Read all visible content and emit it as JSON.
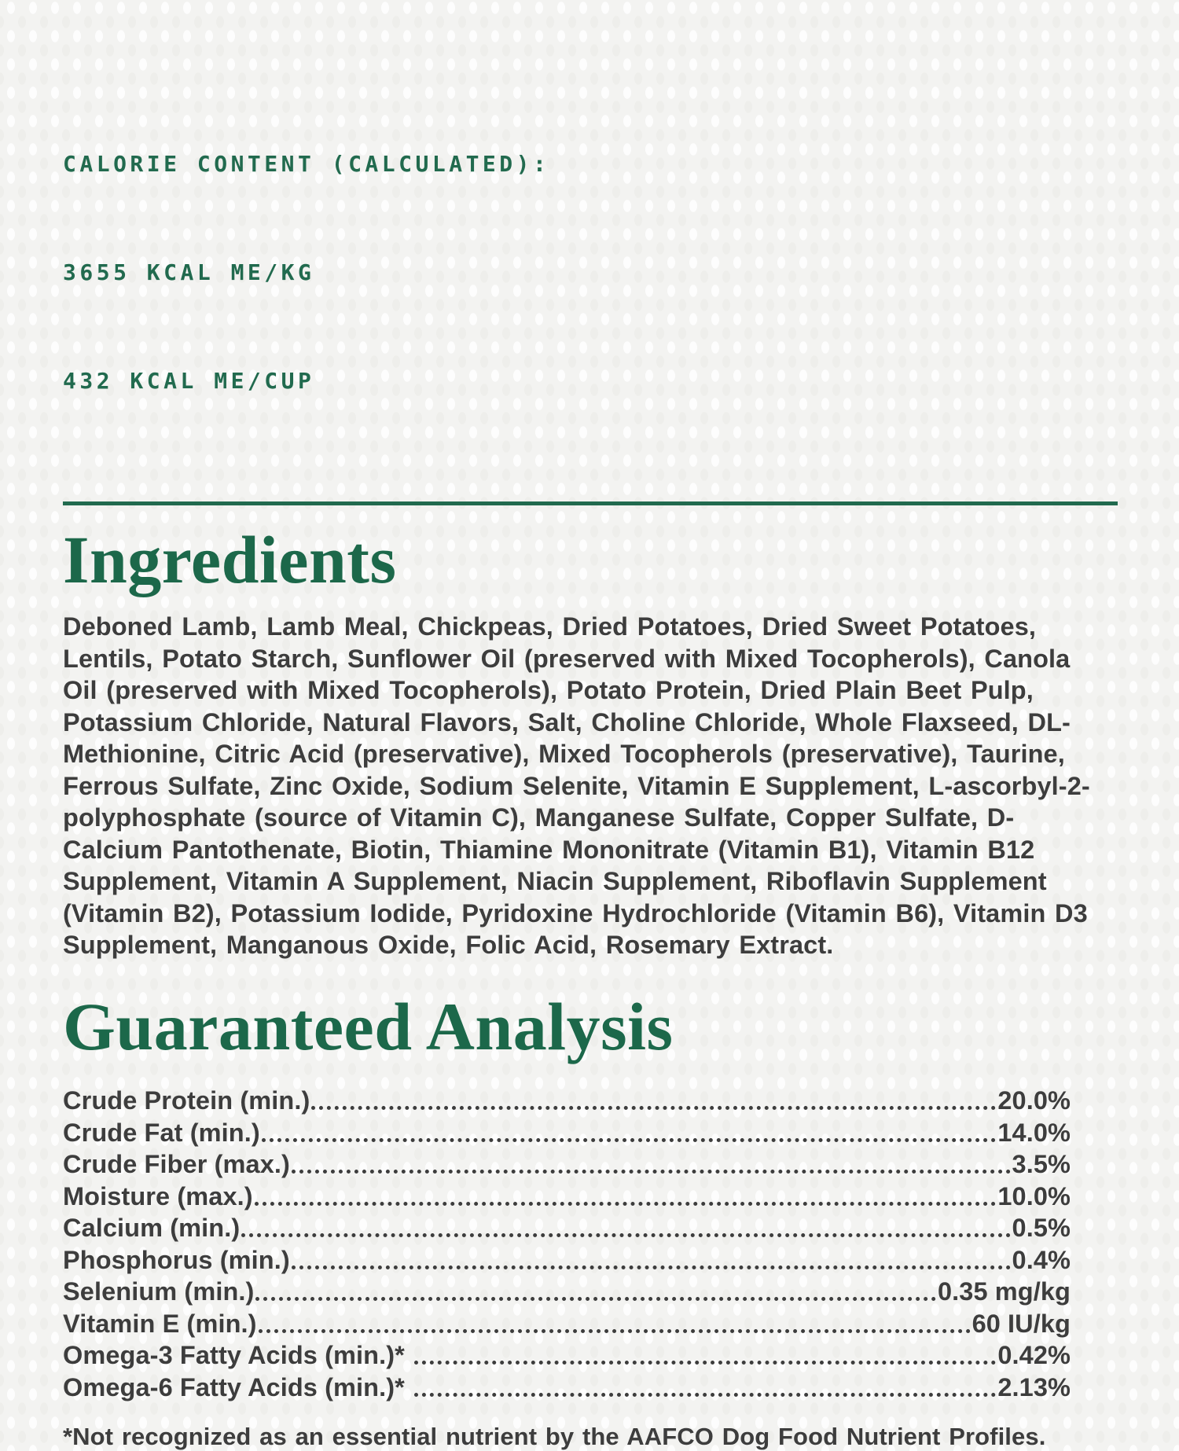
{
  "colors": {
    "accent_green": "#216a4e",
    "body_text": "#3d3d3d",
    "background": "#f3f3f1"
  },
  "calorie": {
    "title": "CALORIE CONTENT (CALCULATED):",
    "kcal_me_kg": "3655 KCAL ME/KG",
    "kcal_me_cup": "432 KCAL ME/CUP"
  },
  "ingredients": {
    "heading": "Ingredients",
    "text": "Deboned Lamb, Lamb Meal, Chickpeas, Dried Potatoes, Dried Sweet Potatoes, Lentils, Potato Starch, Sunflower Oil (preserved with Mixed Tocopherols), Canola Oil (preserved with Mixed Tocopherols), Potato Protein, Dried Plain Beet Pulp, Potassium Chloride, Natural Flavors, Salt, Choline Chloride, Whole Flaxseed, DL-Methionine, Citric Acid (preservative), Mixed Tocopherols (preservative), Taurine, Ferrous Sulfate, Zinc Oxide, Sodium Selenite, Vitamin E Supplement, L-ascorbyl-2-polyphosphate (source of Vitamin C), Manganese Sulfate, Copper Sulfate, D-Calcium Pantothenate, Biotin, Thiamine Mononitrate (Vitamin B1), Vitamin B12 Supplement, Vitamin A Supplement, Niacin Supplement, Riboflavin Supplement (Vitamin B2), Potassium Iodide, Pyridoxine Hydrochloride (Vitamin B6), Vitamin D3 Supplement, Manganous Oxide, Folic Acid, Rosemary Extract."
  },
  "analysis": {
    "heading": "Guaranteed Analysis",
    "rows": [
      {
        "label": "Crude Protein (min.)",
        "value": "20.0%"
      },
      {
        "label": "Crude Fat (min.)",
        "value": "14.0%"
      },
      {
        "label": "Crude Fiber (max.)",
        "value": "3.5%"
      },
      {
        "label": "Moisture (max.)",
        "value": "10.0%"
      },
      {
        "label": "Calcium (min.)",
        "value": "0.5%"
      },
      {
        "label": "Phosphorus (min.)",
        "value": "0.4%"
      },
      {
        "label": "Selenium (min.)",
        "value": "0.35 mg/kg"
      },
      {
        "label": "Vitamin E (min.)",
        "value": "60 IU/kg"
      },
      {
        "label": "Omega-3 Fatty Acids (min.)*",
        "value": "0.42%"
      },
      {
        "label": "Omega-6 Fatty Acids (min.)*",
        "value": "2.13%"
      }
    ],
    "footnote": "*Not recognized as an essential nutrient by the AAFCO Dog Food Nutrient Profiles."
  }
}
